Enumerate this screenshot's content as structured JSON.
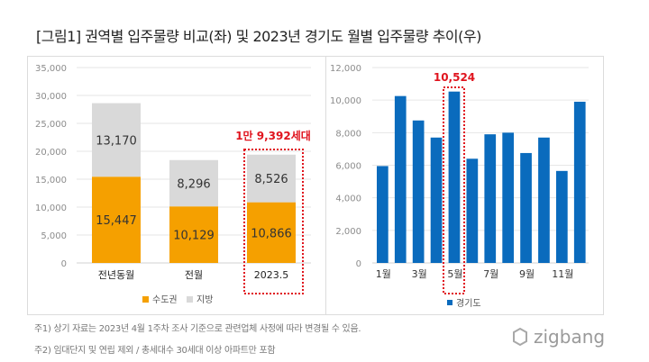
{
  "title": "[그림1] 권역별 입주물량 비교(좌) 및 2023년 경기도 월별 입주물량 추이(우)",
  "colors": {
    "metro": "#f5a000",
    "local": "#d9d9d9",
    "gyeonggi": "#0a6bbd",
    "highlight": "#e0141e",
    "text": "#333333",
    "axis": "#8c8c8c"
  },
  "chart_data": [
    {
      "type": "bar",
      "stacked": true,
      "categories": [
        "전년동월",
        "전월",
        "2023.5"
      ],
      "series": [
        {
          "name": "수도권",
          "values": [
            15447,
            10129,
            10866
          ],
          "labels": [
            "15,447",
            "10,129",
            "10,866"
          ]
        },
        {
          "name": "지방",
          "values": [
            13170,
            8296,
            8526
          ],
          "labels": [
            "13,170",
            "8,296",
            "8,526"
          ]
        }
      ],
      "ylim": [
        0,
        35000
      ],
      "yticks": [
        "0",
        "5,000",
        "10,000",
        "15,000",
        "20,000",
        "25,000",
        "30,000",
        "35,000"
      ],
      "grid": true,
      "legend": "bottom",
      "annotation": {
        "text": "1만 9,392세대",
        "category": "2023.5"
      }
    },
    {
      "type": "bar",
      "x": [
        1,
        2,
        3,
        4,
        5,
        6,
        7,
        8,
        9,
        10,
        11,
        12
      ],
      "xtick_labels": {
        "1": "1월",
        "3": "3월",
        "5": "5월",
        "7": "7월",
        "9": "9월",
        "11": "11월"
      },
      "series": [
        {
          "name": "경기도",
          "values": [
            5950,
            10250,
            8750,
            7700,
            10524,
            6400,
            7900,
            8000,
            6750,
            7700,
            5650,
            9900
          ]
        }
      ],
      "ylim": [
        0,
        12000
      ],
      "yticks": [
        "0",
        "2,000",
        "4,000",
        "6,000",
        "8,000",
        "10,000",
        "12,000"
      ],
      "grid": true,
      "legend": "bottom",
      "annotation": {
        "text": "10,524",
        "x": 5
      }
    }
  ],
  "notes": [
    "주1) 상기 자료는 2023년 4월 1주차 조사 기준으로 관련업체 사정에 따라 변경될 수 있음.",
    "주2) 임대단지 및 연립 제외 / 총세대수 30세대 이상 아파트만 포함"
  ],
  "logo": "zigbang"
}
